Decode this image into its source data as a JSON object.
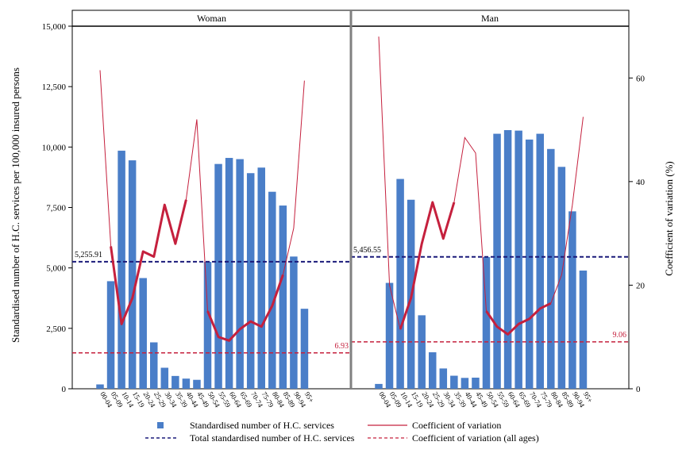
{
  "chart_data": {
    "type": "bar",
    "panels": [
      "Woman",
      "Man"
    ],
    "categories": [
      "00-04",
      "05-09",
      "10-14",
      "15-19",
      "20-24",
      "25-29",
      "30-34",
      "35-39",
      "40-44",
      "45-49",
      "50-54",
      "55-59",
      "60-64",
      "65-69",
      "70-74",
      "75-79",
      "80-84",
      "85-89",
      "90-94",
      "95+"
    ],
    "y_left": {
      "label": "Standardised number of H.C. services per 100,000 insured persons",
      "ylim": [
        0,
        15000
      ],
      "ticks": [
        0,
        2500,
        5000,
        7500,
        10000,
        12500,
        15000
      ],
      "tick_labels": [
        "0",
        "2,500",
        "5,000",
        "7,500",
        "10,000",
        "12,500",
        "15,000"
      ]
    },
    "y_right": {
      "label": "Coefficient of variation (%)",
      "ylim": [
        0,
        70
      ],
      "ticks": [
        0,
        20,
        40,
        60
      ],
      "tick_labels": [
        "0",
        "20",
        "40",
        "60"
      ]
    },
    "series": [
      {
        "panel": "Woman",
        "name": "Standardised number of H.C. services",
        "values": [
          180,
          4450,
          9850,
          9450,
          4580,
          1920,
          870,
          530,
          420,
          370,
          5250,
          9300,
          9550,
          9500,
          8920,
          9150,
          8150,
          7580,
          5470,
          3310
        ],
        "total": 5255.91,
        "total_label": "5,255.91",
        "cv": [
          61.5,
          27.5,
          12.5,
          17.5,
          26.5,
          25.5,
          35.5,
          28.0,
          36.5,
          52.0,
          15.0,
          10.0,
          9.3,
          11.5,
          13.0,
          12.0,
          16.0,
          22.0,
          31.0,
          59.5
        ],
        "cv_bold_ranges": [
          [
            1,
            8
          ],
          [
            10,
            17
          ]
        ],
        "cv_all": 6.93,
        "cv_all_label": "6.93"
      },
      {
        "panel": "Man",
        "name": "Standardised number of H.C. services",
        "values": [
          200,
          4380,
          8680,
          7820,
          3040,
          1510,
          840,
          540,
          450,
          460,
          5450,
          10550,
          10700,
          10680,
          10310,
          10550,
          9920,
          9180,
          7340,
          4890
        ],
        "total": 5456.55,
        "total_label": "5,456.55",
        "cv": [
          68.0,
          20.0,
          11.5,
          17.5,
          28.0,
          36.0,
          29.0,
          36.0,
          48.5,
          45.5,
          15.0,
          12.0,
          10.5,
          12.5,
          13.5,
          15.5,
          16.5,
          22.0,
          35.5,
          52.5
        ],
        "cv_bold_ranges": [
          [
            2,
            7
          ],
          [
            10,
            16
          ]
        ],
        "cv_all": 9.06,
        "cv_all_label": "9.06"
      }
    ],
    "legend": {
      "placement": "bottom",
      "items": [
        {
          "label": "Standardised number of H.C. services",
          "kind": "bar"
        },
        {
          "label": "Coefficient of variation",
          "kind": "line"
        },
        {
          "label": "Total standardised number of H.C. services",
          "kind": "dash-blue"
        },
        {
          "label": "Coefficient of variation (all ages)",
          "kind": "dash-red"
        }
      ]
    },
    "colors": {
      "bar": "#4a7ec8",
      "cv_line": "#c5203d",
      "total_line": "#1a1a7a",
      "cv_all_line": "#c5203d",
      "panel_divider": "#808080"
    }
  }
}
